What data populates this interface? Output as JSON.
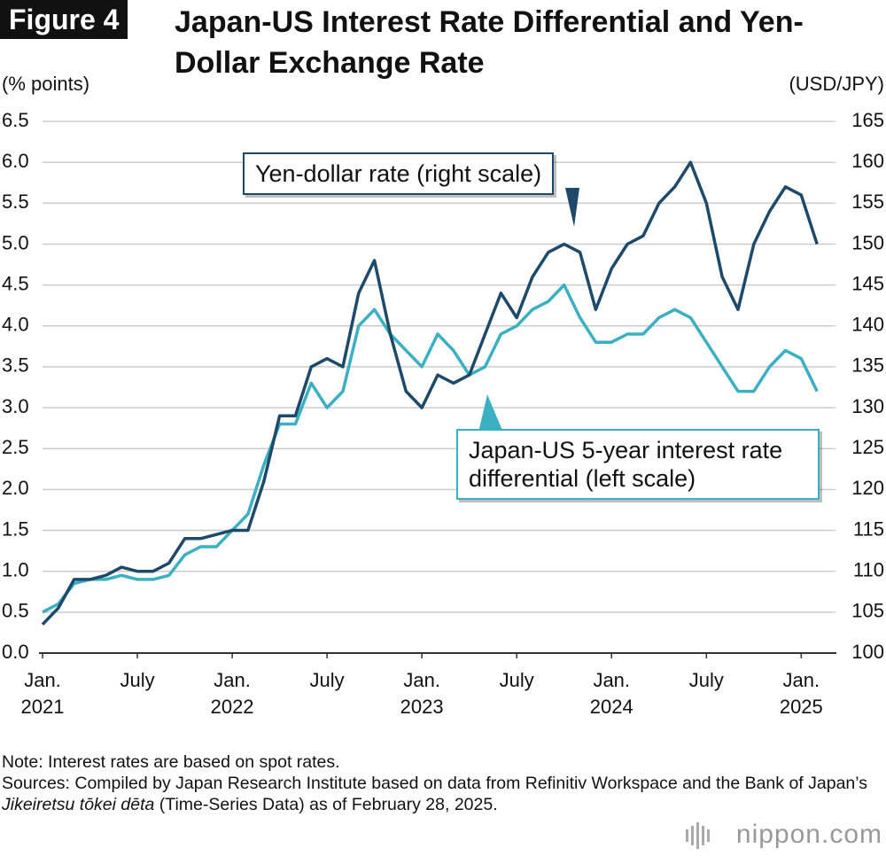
{
  "chart_data": {
    "type": "line",
    "figure_label": "Figure 4",
    "title": "Japan-US Interest Rate Differential and Yen-Dollar Exchange Rate",
    "ylabel": "(% points)",
    "y2label": "(USD/JPY)",
    "x": [
      "2021-01",
      "2021-02",
      "2021-03",
      "2021-04",
      "2021-05",
      "2021-06",
      "2021-07",
      "2021-08",
      "2021-09",
      "2021-10",
      "2021-11",
      "2021-12",
      "2022-01",
      "2022-02",
      "2022-03",
      "2022-04",
      "2022-05",
      "2022-06",
      "2022-07",
      "2022-08",
      "2022-09",
      "2022-10",
      "2022-11",
      "2022-12",
      "2023-01",
      "2023-02",
      "2023-03",
      "2023-04",
      "2023-05",
      "2023-06",
      "2023-07",
      "2023-08",
      "2023-09",
      "2023-10",
      "2023-11",
      "2023-12",
      "2024-01",
      "2024-02",
      "2024-03",
      "2024-04",
      "2024-05",
      "2024-06",
      "2024-07",
      "2024-08",
      "2024-09",
      "2024-10",
      "2024-11",
      "2024-12",
      "2025-01",
      "2025-02"
    ],
    "xlim": [
      "2021-01",
      "2025-03"
    ],
    "xticks": [
      {
        "value": "2021-01",
        "label": "Jan. 2021"
      },
      {
        "value": "2021-07",
        "label": "July"
      },
      {
        "value": "2022-01",
        "label": "Jan. 2022"
      },
      {
        "value": "2022-07",
        "label": "July"
      },
      {
        "value": "2023-01",
        "label": "Jan. 2023"
      },
      {
        "value": "2023-07",
        "label": "July"
      },
      {
        "value": "2024-01",
        "label": "Jan. 2024"
      },
      {
        "value": "2024-07",
        "label": "July"
      },
      {
        "value": "2025-01",
        "label": "Jan. 2025"
      }
    ],
    "ylim": [
      0,
      6.5
    ],
    "yticks": [
      {
        "value": 0,
        "label": "0.0"
      },
      0.5,
      {
        "value": 1,
        "label": "1.0"
      },
      1.5,
      {
        "value": 2,
        "label": "2.0"
      },
      2.5,
      {
        "value": 3,
        "label": "3.0"
      },
      3.5,
      {
        "value": 4,
        "label": "4.0"
      },
      4.5,
      {
        "value": 5,
        "label": "5.0"
      },
      5.5,
      {
        "value": 6,
        "label": "6.0"
      },
      6.5
    ],
    "y2lim": [
      100,
      165
    ],
    "y2ticks": [
      100,
      105,
      110,
      115,
      120,
      125,
      130,
      135,
      140,
      145,
      150,
      155,
      160,
      165
    ],
    "grid": true,
    "series": [
      {
        "name": "Japan-US 5-year interest rate differential (left scale)",
        "color": "#3ab0c2",
        "values": [
          0.5,
          0.6,
          0.85,
          0.9,
          0.9,
          0.95,
          0.9,
          0.9,
          0.95,
          1.2,
          1.3,
          1.3,
          1.5,
          1.7,
          2.3,
          2.8,
          2.8,
          3.3,
          3.0,
          3.2,
          4.0,
          4.2,
          3.9,
          3.7,
          3.5,
          3.9,
          3.7,
          3.4,
          3.5,
          3.9,
          4.0,
          4.2,
          4.3,
          4.5,
          4.1,
          3.8,
          3.8,
          3.9,
          3.9,
          4.1,
          4.2,
          4.1,
          3.8,
          3.5,
          3.2,
          3.2,
          3.5,
          3.7,
          3.6,
          3.2
        ]
      },
      {
        "name": "Yen-dollar rate (right scale)",
        "color": "#1d4a6b",
        "axis": "y2",
        "values": [
          103.5,
          105.5,
          109,
          109,
          109.5,
          110.5,
          110,
          110,
          111,
          114,
          114,
          114.5,
          115,
          115,
          121,
          129,
          129,
          135,
          136,
          135,
          144,
          148,
          139,
          132,
          130,
          134,
          133,
          134,
          139,
          144,
          141,
          146,
          149,
          150,
          149,
          142,
          147,
          150,
          151,
          155,
          157,
          160,
          155,
          146,
          142,
          150,
          154,
          157,
          156,
          150
        ]
      }
    ],
    "note": "Note: Interest rates are based on spot rates.",
    "source_before": "Sources: Compiled by Japan Research Institute based on data from Refinitiv Workspace and the Bank of Japan’s",
    "source_italic": "Jikeiretsu tōkei dēta",
    "source_after": "(Time-Series Data) as of February 28, 2025.",
    "logo": "nippon.com"
  }
}
